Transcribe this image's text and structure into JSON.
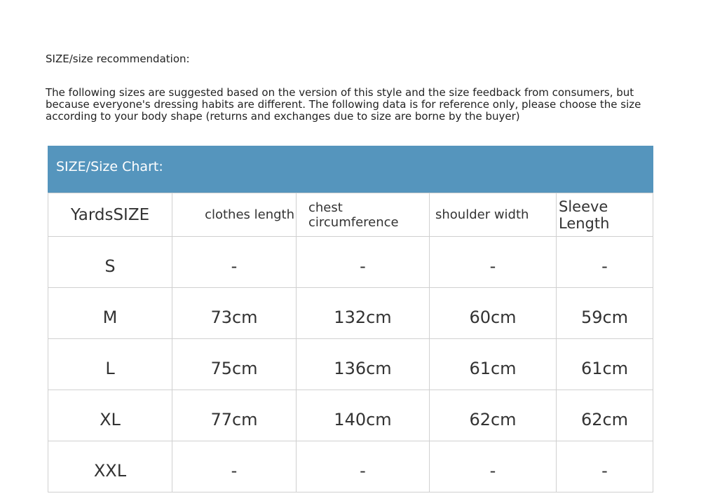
{
  "title": "SIZE/size recommendation:",
  "description": "The following sizes are suggested based on the version of this style and the size feedback from consumers, but because everyone's dressing habits are different. The following data is for reference only, please choose the size according to your body shape (returns and exchanges due to size are borne by the buyer)",
  "banner": {
    "label": "SIZE/Size Chart:",
    "color": "#5595bd"
  },
  "table": {
    "headers": [
      "YardsSIZE",
      "clothes length",
      "chest circumference",
      "shoulder width",
      "Sleeve Length"
    ],
    "rows": [
      [
        "S",
        "-",
        "-",
        "-",
        "-"
      ],
      [
        "M",
        "73cm",
        "132cm",
        "60cm",
        "59cm"
      ],
      [
        "L",
        "75cm",
        "136cm",
        "61cm",
        "61cm"
      ],
      [
        "XL",
        "77cm",
        "140cm",
        "62cm",
        "62cm"
      ],
      [
        "XXL",
        "-",
        "-",
        "-",
        "-"
      ]
    ]
  }
}
